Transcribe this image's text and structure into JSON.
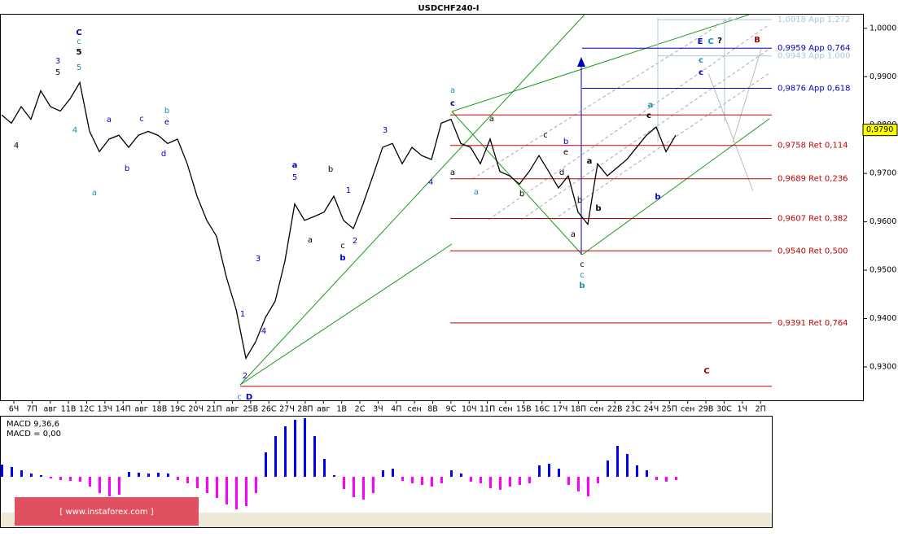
{
  "chart_data": [
    {
      "type": "line",
      "title": "USDCHF240-I",
      "color": "#000000",
      "values": [
        0.9821,
        0.9804,
        0.9838,
        0.9812,
        0.9871,
        0.9838,
        0.9829,
        0.9854,
        0.9888,
        0.9787,
        0.9745,
        0.9771,
        0.9779,
        0.9754,
        0.9779,
        0.9787,
        0.9779,
        0.9762,
        0.9771,
        0.972,
        0.9653,
        0.9603,
        0.957,
        0.9486,
        0.9419,
        0.9318,
        0.9352,
        0.9402,
        0.9436,
        0.9519,
        0.9637,
        0.9603,
        0.9611,
        0.962,
        0.9653,
        0.9603,
        0.9586,
        0.9637,
        0.9695,
        0.9754,
        0.9762,
        0.972,
        0.9754,
        0.9737,
        0.9729,
        0.9804,
        0.9812,
        0.9762,
        0.9754,
        0.972,
        0.9771,
        0.9704,
        0.9695,
        0.9678,
        0.9704,
        0.9737,
        0.9704,
        0.967,
        0.9695,
        0.962,
        0.9595,
        0.972,
        0.9695,
        0.9712,
        0.9729,
        0.9754,
        0.9779,
        0.9796,
        0.9745,
        0.9779
      ],
      "x_labels": [
        "6Ч",
        "7П",
        "авг",
        "11В",
        "12С",
        "13Ч",
        "14П",
        "авг",
        "18В",
        "19С",
        "20Ч",
        "21П",
        "авг",
        "25В",
        "26С",
        "27Ч",
        "28П",
        "авг",
        "1В",
        "2С",
        "3Ч",
        "4П",
        "сен",
        "8В",
        "9С",
        "10Ч",
        "11П",
        "сен",
        "15В",
        "16С",
        "17Ч",
        "18П",
        "сен",
        "22В",
        "23С",
        "24Ч",
        "25П",
        "сен",
        "29В",
        "30С",
        "1Ч",
        "2П"
      ],
      "ylim": [
        0.9231,
        1.003
      ],
      "yticks": [
        {
          "value": 0.93,
          "label": "0,9300"
        },
        {
          "value": 0.94,
          "label": "0,9400"
        },
        {
          "value": 0.95,
          "label": "0,9500"
        },
        {
          "value": 0.96,
          "label": "0,9600"
        },
        {
          "value": 0.97,
          "label": "0,9700"
        },
        {
          "value": 0.98,
          "label": "0,9800"
        },
        {
          "value": 0.99,
          "label": "0,9900"
        },
        {
          "value": 1.0,
          "label": "1,0000"
        }
      ],
      "last_price": {
        "value": 0.979,
        "label": "0,9790"
      },
      "levels": [
        {
          "value": 1.0018,
          "label": "1,0018 App 1,272",
          "color": "#a8c8e0"
        },
        {
          "value": 0.9959,
          "label": "0,9959 App 0,764",
          "color": "#0000c0"
        },
        {
          "value": 0.9943,
          "label": "0,9943 App 1,000",
          "color": "#a8c8e0"
        },
        {
          "value": 0.9876,
          "label": "0,9876 App 0,618",
          "color": "#0000c0"
        },
        {
          "value": 0.9821,
          "color": "#c00000"
        },
        {
          "value": 0.9758,
          "label": "0,9758 Ret 0,114",
          "color": "#c00000"
        },
        {
          "value": 0.9689,
          "label": "0,9689 Ret 0,236",
          "color": "#c00000"
        },
        {
          "value": 0.9607,
          "label": "0,9607 Ret 0,382",
          "color": "#c00000"
        },
        {
          "value": 0.954,
          "label": "0,9540 Ret 0,500",
          "color": "#c00000"
        },
        {
          "value": 0.9391,
          "label": "0,9391 Ret 0,764",
          "color": "#c00000"
        },
        {
          "value": 0.926,
          "color": "#c00000"
        }
      ],
      "annotations": [
        "C",
        "c",
        "5",
        "5",
        "4",
        "3",
        "5",
        "4",
        "a",
        "a",
        "b",
        "c",
        "b",
        "e",
        "d",
        "a",
        "5",
        "b",
        "1",
        "a",
        "c",
        "b",
        "2",
        "3",
        "1",
        "4",
        "2",
        "c",
        "D",
        "3",
        "4",
        "a",
        "c",
        "a",
        "a",
        "a",
        "b",
        "c",
        "b",
        "e",
        "d",
        "b",
        "a",
        "c",
        "c",
        "b",
        "a",
        "b",
        "a",
        "c",
        "b",
        "E",
        "C",
        "?",
        "B",
        "c",
        "c",
        "C"
      ]
    },
    {
      "type": "bar",
      "title": "MACD 9,36,6",
      "subtitle": "MACD = 0,00",
      "colors": {
        "positive": "#0000ff",
        "negative": "#ff00ff"
      },
      "ylim": [
        -62,
        74
      ],
      "values": [
        15,
        12,
        8,
        4,
        2,
        -2,
        -4,
        -5,
        -6,
        -12,
        -20,
        -24,
        -22,
        6,
        5,
        4,
        5,
        4,
        -4,
        -8,
        -14,
        -20,
        -26,
        -34,
        -40,
        -36,
        -20,
        30,
        50,
        62,
        70,
        72,
        50,
        22,
        2,
        -15,
        -25,
        -28,
        -20,
        8,
        10,
        -5,
        -8,
        -10,
        -12,
        -8,
        8,
        4,
        -6,
        -8,
        -14,
        -16,
        -12,
        -10,
        -8,
        14,
        16,
        10,
        -10,
        -18,
        -24,
        -8,
        20,
        38,
        28,
        14,
        8,
        -4,
        -6,
        -4
      ]
    }
  ],
  "watermark": "[ www.instaforex.com ]"
}
